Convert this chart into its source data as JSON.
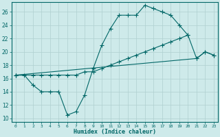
{
  "xlabel": "Humidex (Indice chaleur)",
  "background_color": "#ceeaea",
  "line_color": "#006666",
  "grid_color": "#afd0d0",
  "xlim": [
    -0.5,
    23.5
  ],
  "ylim": [
    9.5,
    27.5
  ],
  "yticks": [
    10,
    12,
    14,
    16,
    18,
    20,
    22,
    24,
    26
  ],
  "xticks": [
    0,
    1,
    2,
    3,
    4,
    5,
    6,
    7,
    8,
    9,
    10,
    11,
    12,
    13,
    14,
    15,
    16,
    17,
    18,
    19,
    20,
    21,
    22,
    23
  ],
  "line1_x": [
    0,
    1,
    2,
    3,
    4,
    5,
    6,
    7,
    8,
    9,
    10,
    11,
    12,
    13,
    14,
    15,
    16,
    17,
    18,
    19,
    20
  ],
  "line1_y": [
    16.5,
    16.5,
    15.0,
    14.0,
    14.0,
    14.0,
    10.5,
    11.0,
    13.5,
    17.5,
    21.0,
    23.5,
    25.5,
    25.5,
    25.5,
    27.0,
    26.5,
    26.0,
    25.5,
    24.0,
    22.5
  ],
  "line2_x": [
    0,
    2,
    3,
    4,
    5,
    6,
    7,
    8,
    9,
    10,
    11,
    12,
    13,
    14,
    15,
    16,
    17,
    18,
    19,
    20,
    21,
    22,
    23
  ],
  "line2_y": [
    16.5,
    16.5,
    16.5,
    16.5,
    16.5,
    16.5,
    16.5,
    17.0,
    17.0,
    17.5,
    18.0,
    18.5,
    19.0,
    19.5,
    20.0,
    20.5,
    21.0,
    21.5,
    22.0,
    22.5,
    19.0,
    20.0,
    19.5
  ],
  "line3_x": [
    0,
    21,
    22,
    23
  ],
  "line3_y": [
    16.5,
    19.0,
    20.0,
    19.5
  ]
}
